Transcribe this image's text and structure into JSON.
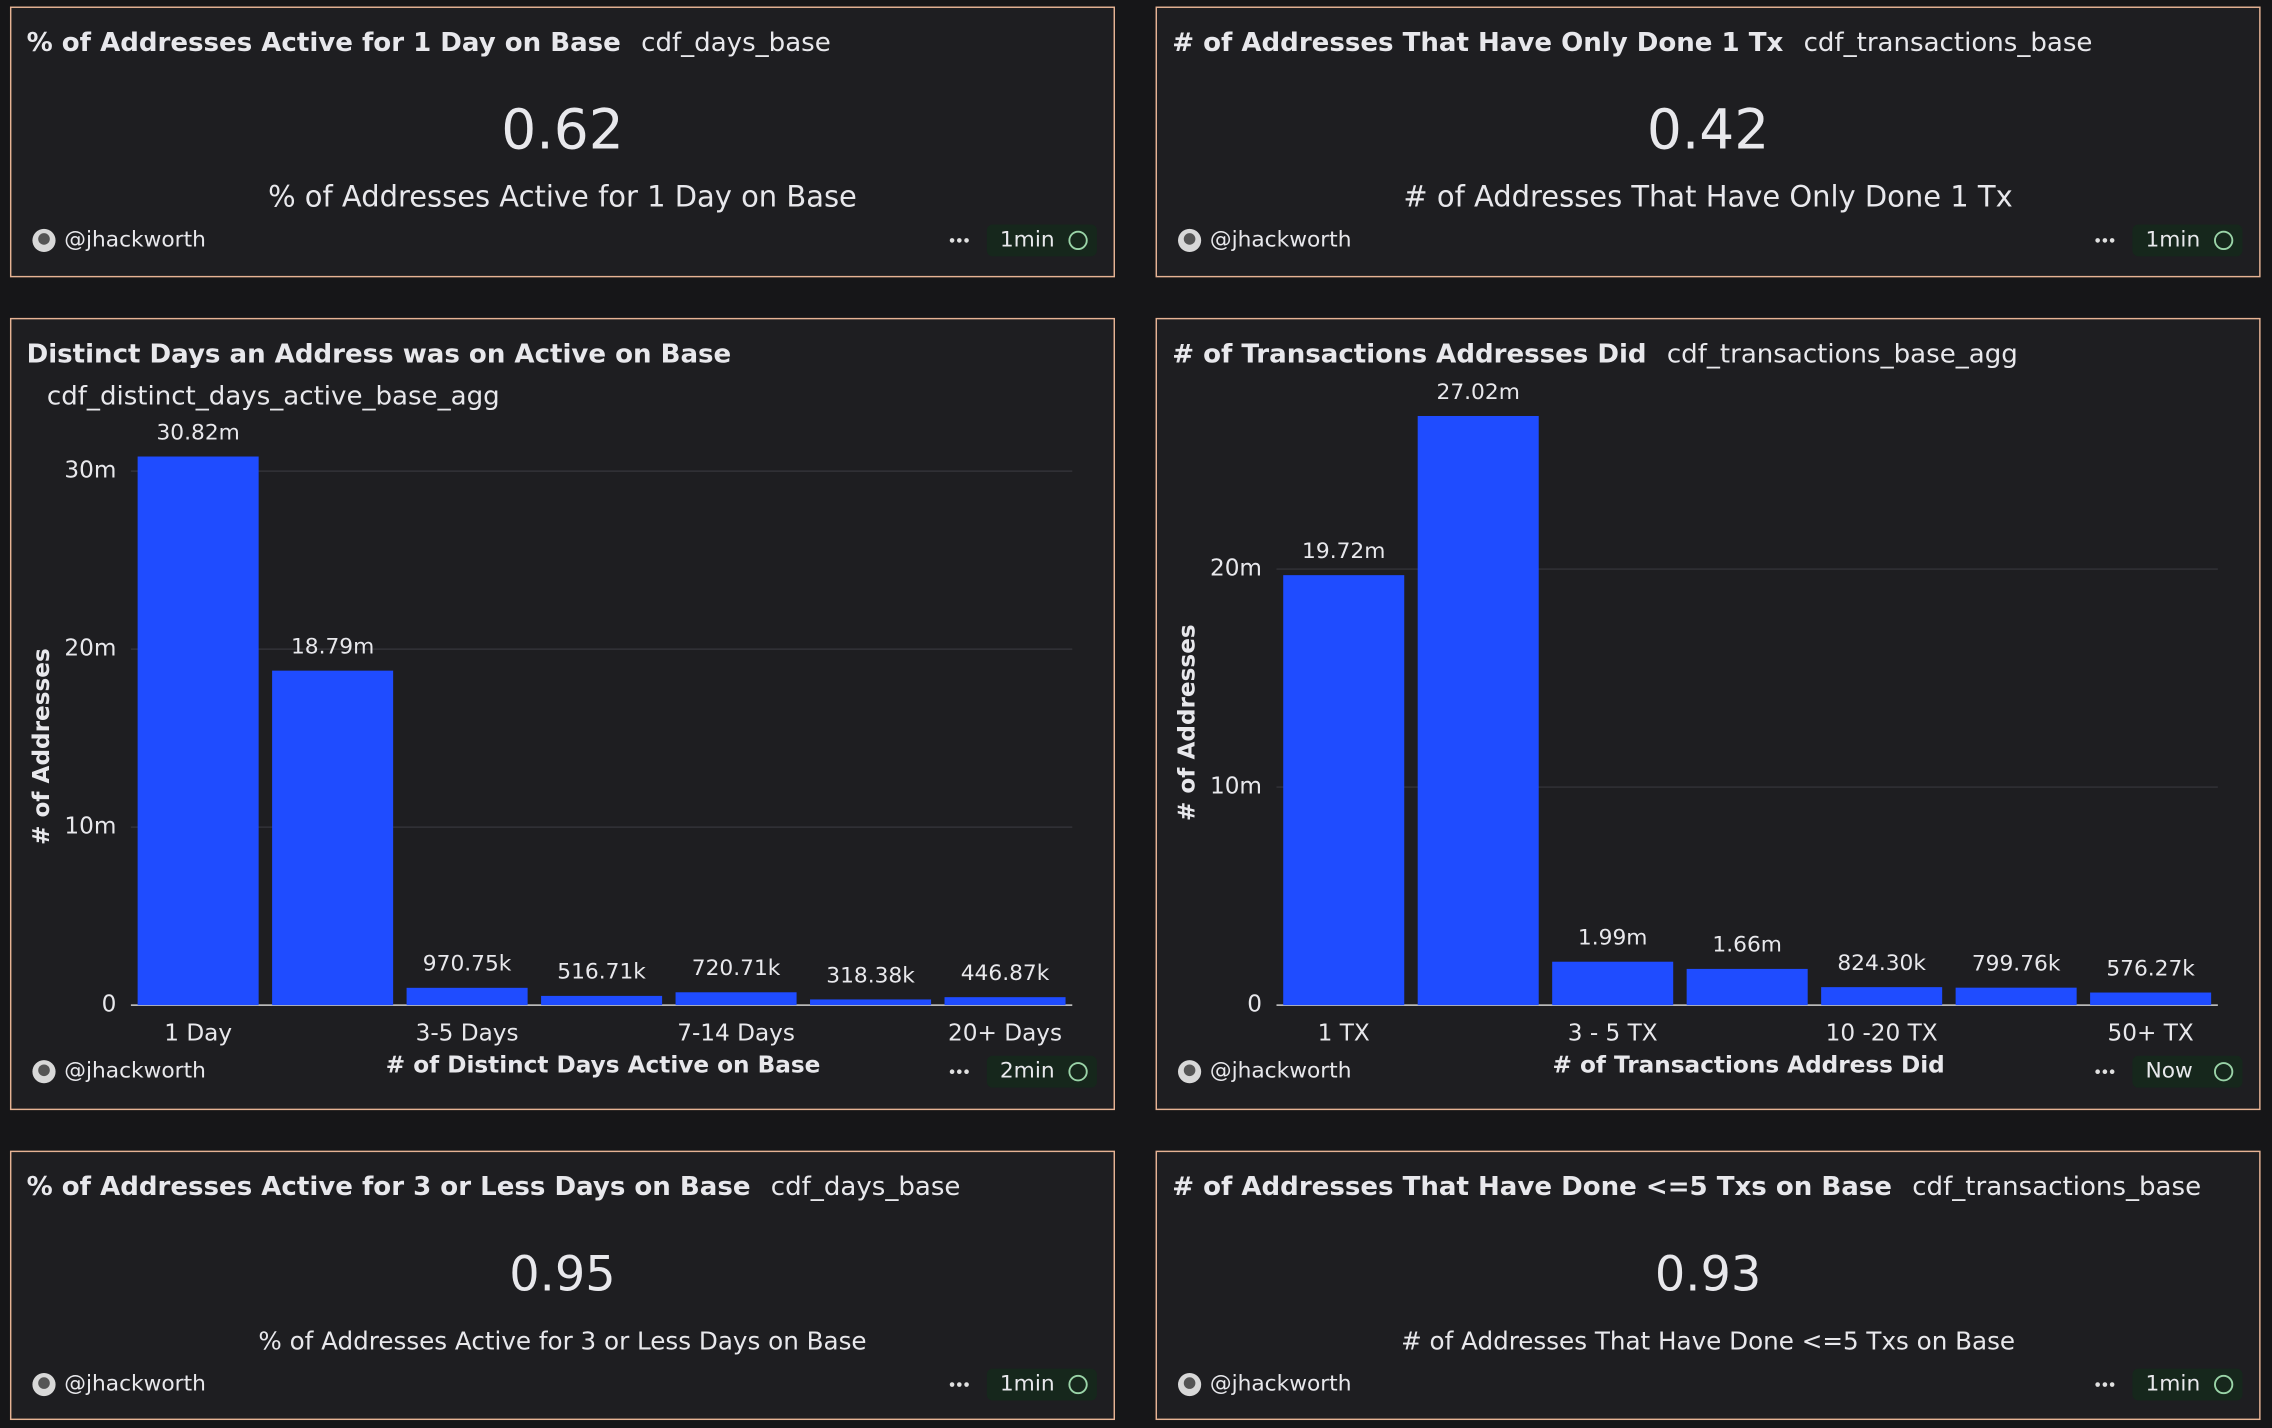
{
  "chart_data": [
    {
      "type": "bar",
      "title": "Distinct Days an Address was on Active on Base",
      "query": "cdf_distinct_days_active_base_agg",
      "y_label": "# of Addresses",
      "x_label": "# of Distinct Days Active on Base",
      "categories": [
        "1 Day",
        null,
        "3-5 Days",
        null,
        "7-14 Days",
        null,
        "20+ Days"
      ],
      "values": [
        30820000,
        18790000,
        970750,
        516710,
        720710,
        318380,
        446870
      ],
      "value_labels": [
        "30.82m",
        "18.79m",
        "970.75k",
        "516.71k",
        "720.71k",
        "318.38k",
        "446.87k"
      ],
      "color": "#1f4cff",
      "ylim": [
        0,
        31000000
      ],
      "yticks": [
        0,
        {
          "value": 10000000,
          "label": "10m"
        },
        {
          "value": 20000000,
          "label": "20m"
        },
        {
          "value": 30000000,
          "label": "30m"
        }
      ],
      "grid": true,
      "author": "@jhackworth",
      "refresh": "2min"
    },
    {
      "type": "bar",
      "title": "# of Transactions Addresses Did",
      "query": "cdf_transactions_base_agg",
      "y_label": "# of Addresses",
      "x_label": "# of Transactions Address Did",
      "categories": [
        "1 TX",
        null,
        "3 - 5 TX",
        null,
        "10 -20 TX",
        null,
        "50+ TX"
      ],
      "values": [
        19720000,
        27020000,
        1990000,
        1660000,
        824300,
        799760,
        576270
      ],
      "value_labels": [
        "19.72m",
        "27.02m",
        "1.99m",
        "1.66m",
        "824.30k",
        "799.76k",
        "576.27k"
      ],
      "color": "#1f4cff",
      "ylim": [
        0,
        27500000
      ],
      "yticks": [
        0,
        {
          "value": 10000000,
          "label": "10m"
        },
        {
          "value": 20000000,
          "label": "20m"
        }
      ],
      "grid": true,
      "author": "@jhackworth",
      "refresh": "Now"
    }
  ],
  "counters": [
    {
      "title": "% of Addresses Active for 1 Day on Base",
      "query": "cdf_days_base",
      "value": 0.62,
      "label": "% of Addresses Active for 1 Day on Base",
      "author": "@jhackworth",
      "refresh": "1min"
    },
    {
      "title": "# of Addresses That Have Only Done 1 Tx",
      "query": "cdf_transactions_base",
      "value": 0.42,
      "label": "# of Addresses That Have Only Done 1 Tx",
      "author": "@jhackworth",
      "refresh": "1min"
    },
    {
      "title": "% of Addresses Active for 3 or Less Days on Base",
      "query": "cdf_days_base",
      "value": 0.95,
      "label": "% of Addresses Active for 3 or Less Days on Base",
      "author": "@jhackworth",
      "refresh": "1min"
    },
    {
      "title": "# of Addresses That Have Done <=5 Txs on Base",
      "query": "cdf_transactions_base",
      "value": 0.93,
      "label": "# of Addresses That Have Done <=5 Txs on Base",
      "author": "@jhackworth",
      "refresh": "1min"
    }
  ]
}
